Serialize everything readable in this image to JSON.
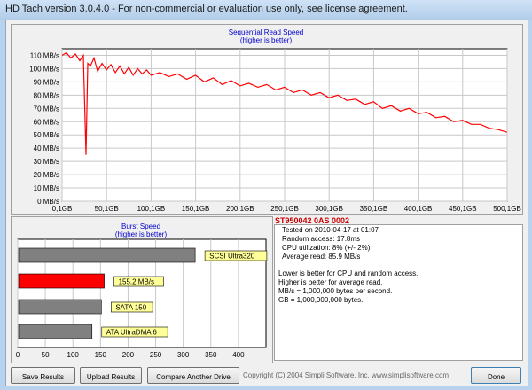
{
  "window": {
    "title": "HD Tach version 3.0.4.0  - For non-commercial or evaluation use only, see license agreement."
  },
  "read_chart": {
    "title": "Sequential Read Speed",
    "subtitle": "(higher is better)"
  },
  "burst_chart": {
    "title": "Burst Speed",
    "subtitle": "(higher is better)"
  },
  "drive_info": {
    "model": "ST950042 0AS 0002",
    "lines": [
      "Tested on 2010-04-17 at 01:07",
      "Random access: 17.8ms",
      "CPU utilization: 8% (+/- 2%)",
      "Average read: 85.9 MB/s"
    ],
    "notes": [
      "Lower is better for CPU and random access.",
      "Higher is better for average read.",
      "MB/s = 1,000,000 bytes per second.",
      "GB = 1,000,000,000 bytes."
    ]
  },
  "buttons": {
    "save": "Save Results",
    "upload": "Upload Results",
    "compare": "Compare Another Drive",
    "done": "Done"
  },
  "copyright": "Copyright (C) 2004 Simpli Software, Inc. www.simplisoftware.com",
  "colors": {
    "series": "#ff0000",
    "highlight_bar": "#ff0000",
    "gray_bar": "#808080",
    "label_bg": "#ffff99",
    "title_blue": "#0000cc"
  },
  "chart_data": [
    {
      "type": "line",
      "title": "Sequential Read Speed",
      "subtitle": "(higher is better)",
      "x_unit": "GB",
      "y_unit": "MB/s",
      "xlim": [
        0.1,
        500.1
      ],
      "ylim": [
        0,
        115
      ],
      "x_ticks": [
        "0,1GB",
        "50,1GB",
        "100,1GB",
        "150,1GB",
        "200,1GB",
        "250,1GB",
        "300,1GB",
        "350,1GB",
        "400,1GB",
        "450,1GB",
        "500,1GB"
      ],
      "y_ticks": [
        "0 MB/s",
        "10 MB/s",
        "20 MB/s",
        "30 MB/s",
        "40 MB/s",
        "50 MB/s",
        "60 MB/s",
        "70 MB/s",
        "80 MB/s",
        "90 MB/s",
        "100 MB/s",
        "110 MB/s"
      ],
      "grid": true,
      "series": [
        {
          "x": [
            0.1,
            5,
            10,
            15,
            20,
            24,
            27,
            29,
            32,
            36,
            40,
            45,
            50,
            55,
            60,
            65,
            70,
            75,
            80,
            85,
            90,
            95,
            100,
            110,
            120,
            130,
            140,
            150,
            160,
            170,
            180,
            190,
            200,
            210,
            220,
            230,
            240,
            250,
            260,
            270,
            280,
            290,
            300,
            310,
            320,
            330,
            340,
            350,
            360,
            370,
            380,
            390,
            400,
            410,
            420,
            430,
            440,
            450,
            460,
            470,
            480,
            490,
            500
          ],
          "y": [
            110,
            112,
            108,
            111,
            106,
            110,
            35,
            104,
            102,
            108,
            98,
            104,
            99,
            103,
            97,
            102,
            96,
            101,
            95,
            100,
            96,
            99,
            95,
            97,
            94,
            96,
            92,
            95,
            90,
            93,
            88,
            91,
            87,
            89,
            86,
            88,
            84,
            86,
            82,
            84,
            80,
            82,
            78,
            80,
            76,
            77,
            73,
            75,
            70,
            72,
            68,
            70,
            66,
            67,
            63,
            64,
            60,
            61,
            58,
            58,
            55,
            54,
            52
          ]
        }
      ]
    },
    {
      "type": "bar",
      "orientation": "horizontal",
      "title": "Burst Speed",
      "subtitle": "(higher is better)",
      "xlim": [
        0,
        450
      ],
      "x_ticks": [
        "0",
        "50",
        "100",
        "150",
        "200",
        "250",
        "300",
        "350",
        "400"
      ],
      "categories": [
        "SCSI Ultra320",
        "155.2 MB/s",
        "SATA 150",
        "ATA UltraDMA 6"
      ],
      "values": [
        320,
        155.2,
        150,
        133
      ],
      "highlight_index": 1
    }
  ]
}
